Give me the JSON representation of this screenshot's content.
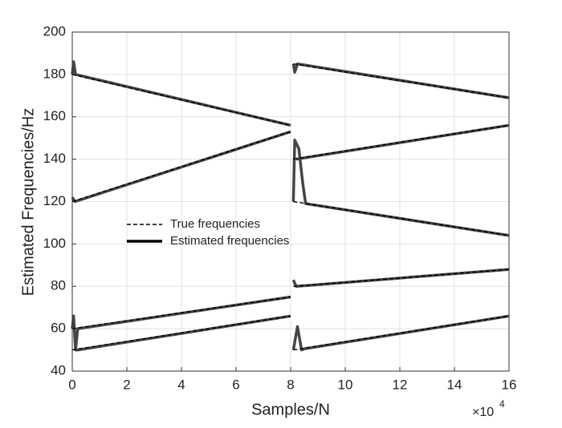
{
  "chart_data": {
    "type": "line",
    "xlabel": "Samples/N",
    "ylabel": "Estimated Frequencies/Hz",
    "x_multiplier": {
      "base": "×10",
      "exponent": "4"
    },
    "xlim": [
      0,
      16
    ],
    "xticks": [
      0,
      2,
      4,
      6,
      8,
      10,
      12,
      14,
      16
    ],
    "ylim": [
      40,
      200
    ],
    "yticks": [
      40,
      60,
      80,
      100,
      120,
      140,
      160,
      180,
      200
    ],
    "grid": true,
    "legend": "center-left",
    "series": [
      {
        "name": "Estimated frequencies",
        "color": "#454545",
        "style": "solid",
        "x": [
          0,
          0.05,
          0.12,
          8,
          null,
          0,
          0.1,
          8,
          null,
          0,
          0.05,
          0.12,
          0.2,
          8,
          null,
          0.1,
          0.2,
          8,
          null,
          8.1,
          8.15,
          8.25,
          16,
          null,
          8.1,
          8.15,
          8.3,
          8.45,
          8.55,
          16,
          null,
          8.2,
          16,
          null,
          8.1,
          8.2,
          16,
          null,
          8.1,
          8.25,
          8.4,
          8.5,
          16
        ],
        "values": [
          180,
          186,
          180,
          156,
          null,
          122,
          120,
          153,
          null,
          60,
          66,
          50,
          60,
          75,
          null,
          50,
          50,
          66,
          null,
          185,
          181,
          185,
          169,
          null,
          120,
          149,
          145,
          128,
          119,
          104,
          null,
          140,
          156,
          null,
          83,
          80,
          88,
          null,
          50,
          61,
          50,
          50.5,
          66
        ]
      },
      {
        "name": "True frequencies",
        "color": "#000000",
        "style": "dashed",
        "x": [
          0,
          8,
          null,
          0,
          8,
          null,
          0,
          8,
          null,
          0,
          8,
          null,
          8.1,
          16,
          null,
          8.1,
          16,
          null,
          8.1,
          16,
          null,
          8.1,
          16,
          null,
          8.1,
          16
        ],
        "values": [
          180,
          156,
          null,
          120,
          153,
          null,
          60,
          75,
          null,
          50,
          66,
          null,
          185,
          169,
          null,
          140,
          156,
          null,
          120,
          104,
          null,
          80,
          88,
          null,
          50,
          66
        ]
      }
    ]
  }
}
